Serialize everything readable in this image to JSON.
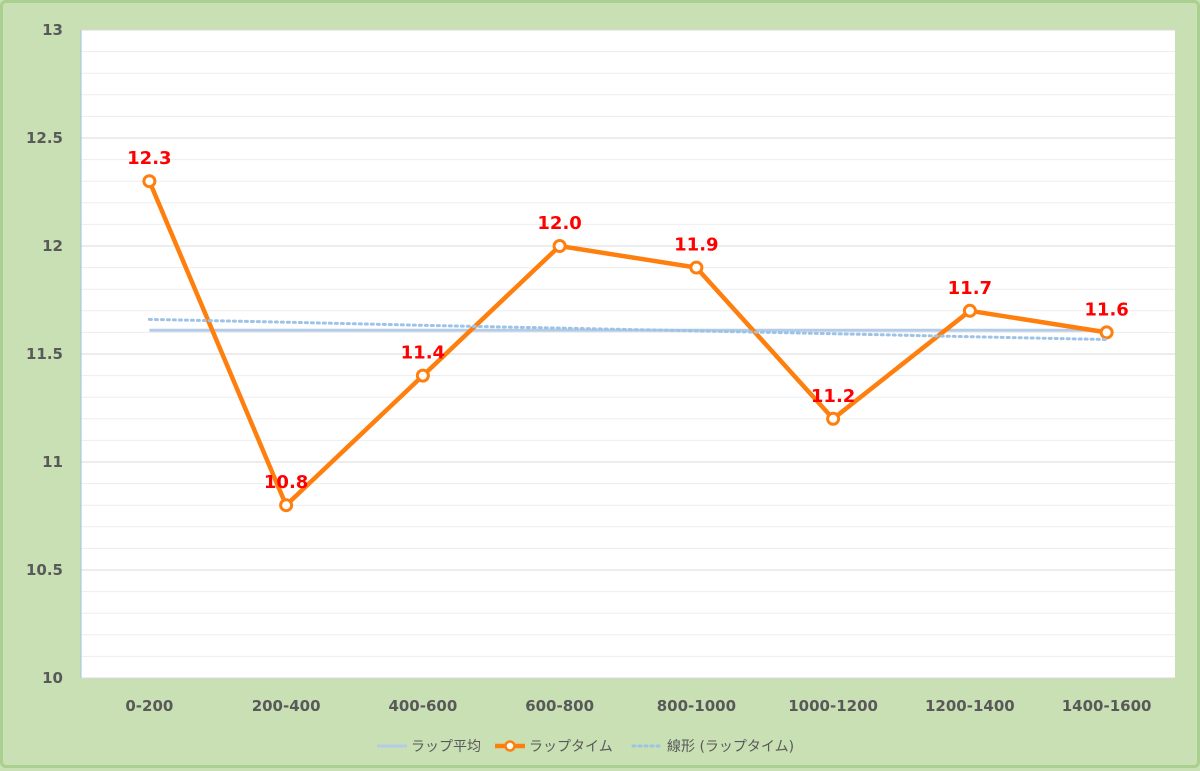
{
  "chart_data": {
    "type": "line",
    "categories": [
      "0-200",
      "200-400",
      "400-600",
      "600-800",
      "800-1000",
      "1000-1200",
      "1200-1400",
      "1400-1600"
    ],
    "series": [
      {
        "name": "ラップ平均",
        "values": [
          11.61,
          11.61,
          11.61,
          11.61,
          11.61,
          11.61,
          11.61,
          11.61
        ],
        "color": "#b4cce8",
        "style": "solid"
      },
      {
        "name": "ラップタイム",
        "values": [
          12.3,
          10.8,
          11.4,
          12.0,
          11.9,
          11.2,
          11.7,
          11.6
        ],
        "labels": [
          "12.3",
          "10.8",
          "11.4",
          "12.0",
          "11.9",
          "11.2",
          "11.7",
          "11.6"
        ],
        "color": "#ff7f0e",
        "style": "solid-markers"
      },
      {
        "name": "線形 (ラップタイム)",
        "values": [
          11.66,
          11.647,
          11.633,
          11.62,
          11.607,
          11.594,
          11.58,
          11.567
        ],
        "color": "#9dc3e6",
        "style": "dotted"
      }
    ],
    "ylim": [
      10,
      13
    ],
    "yticks": [
      "10",
      "10.5",
      "11",
      "11.5",
      "12",
      "12.5",
      "13"
    ],
    "data_label_color": "#ff0000",
    "grid": true,
    "legend_position": "bottom",
    "title": "",
    "xlabel": "",
    "ylabel": ""
  }
}
